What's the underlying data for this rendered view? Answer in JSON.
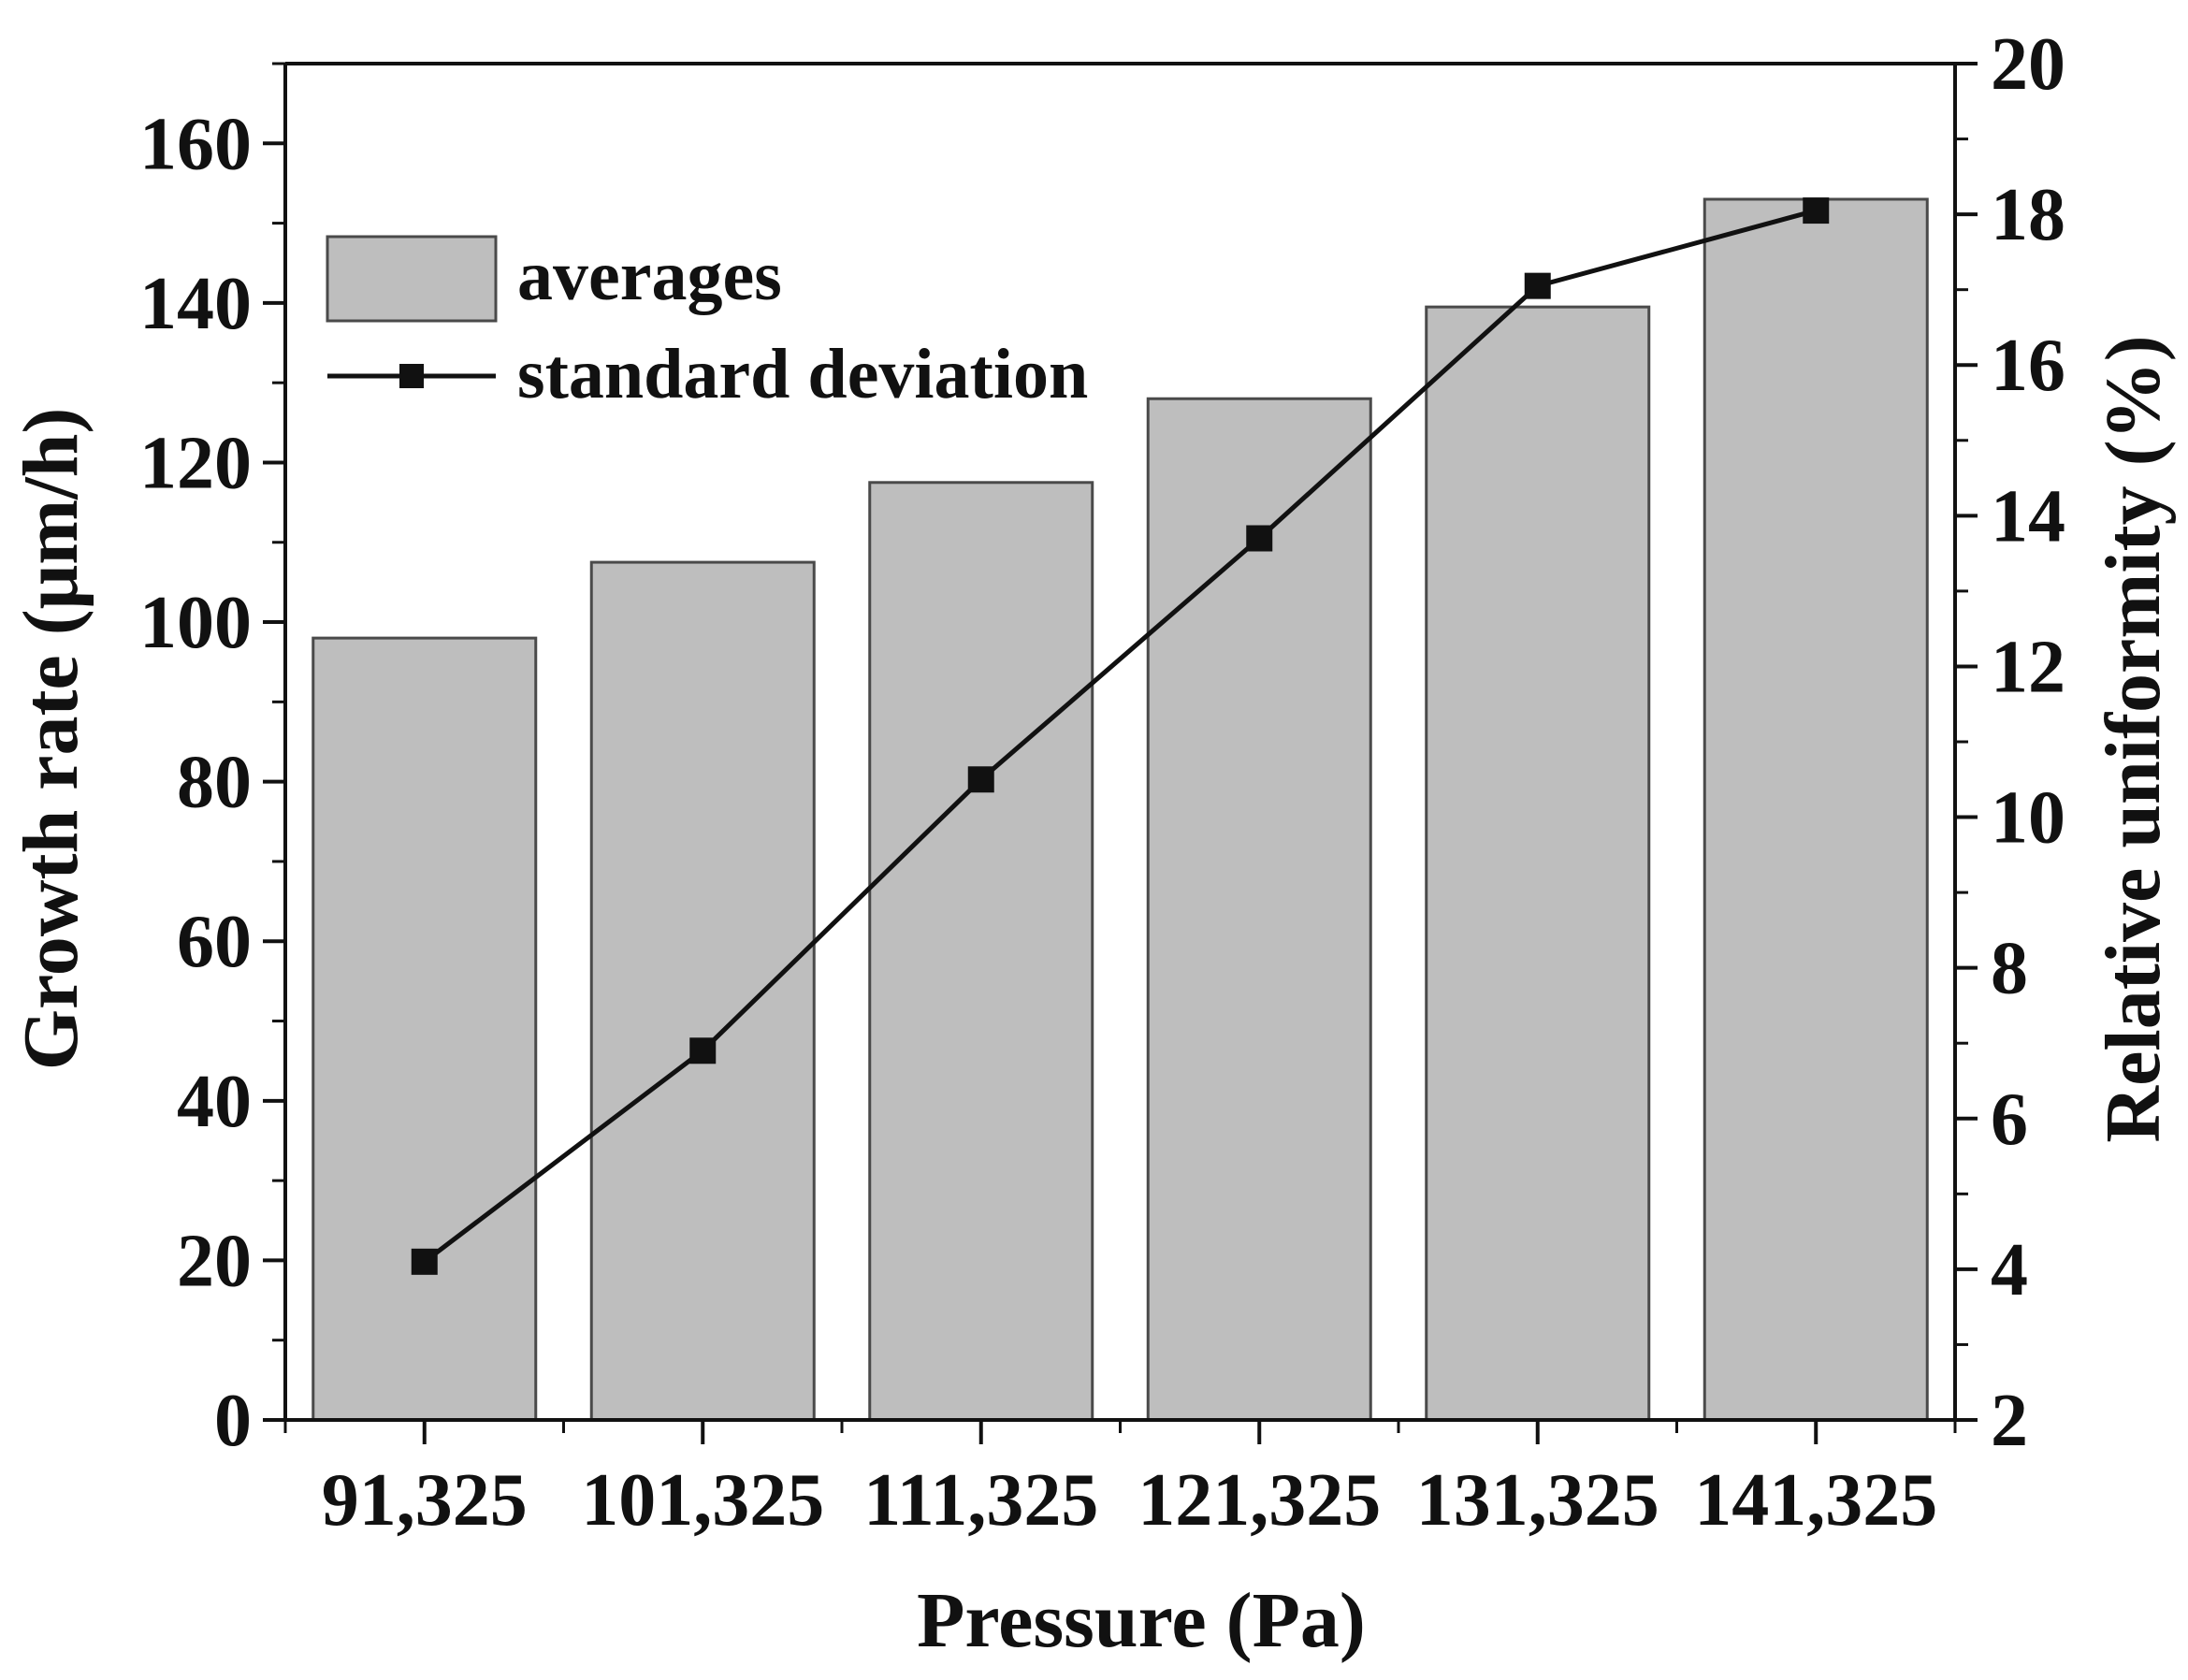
{
  "chart_data": {
    "type": "bar",
    "categories": [
      "91,325",
      "101,325",
      "111,325",
      "121,325",
      "131,325",
      "141,325"
    ],
    "series": [
      {
        "name": "averages",
        "type": "bar",
        "axis": "left",
        "values": [
          98,
          107.5,
          117.5,
          128,
          139.5,
          153
        ]
      },
      {
        "name": "standard deviation",
        "type": "line",
        "axis": "right",
        "marker": "square",
        "values": [
          4.1,
          6.9,
          10.5,
          13.7,
          17.05,
          18.05
        ]
      }
    ],
    "xlabel": "Pressure (Pa)",
    "ylabel": "Growth rate (μm/h)",
    "y2label": "Relative uniformity (%)",
    "ylim": [
      0,
      170
    ],
    "y2lim": [
      2,
      20
    ],
    "yticks": [
      "0",
      "20",
      "40",
      "60",
      "80",
      "100",
      "120",
      "140",
      "160"
    ],
    "y2ticks": [
      "2",
      "4",
      "6",
      "8",
      "10",
      "12",
      "14",
      "16",
      "18",
      "20"
    ],
    "legend_position": "top-left",
    "colors": {
      "bar_fill": "#bebebe",
      "bar_stroke": "#4a4a4a",
      "line": "#111111",
      "axis": "#111111"
    }
  }
}
